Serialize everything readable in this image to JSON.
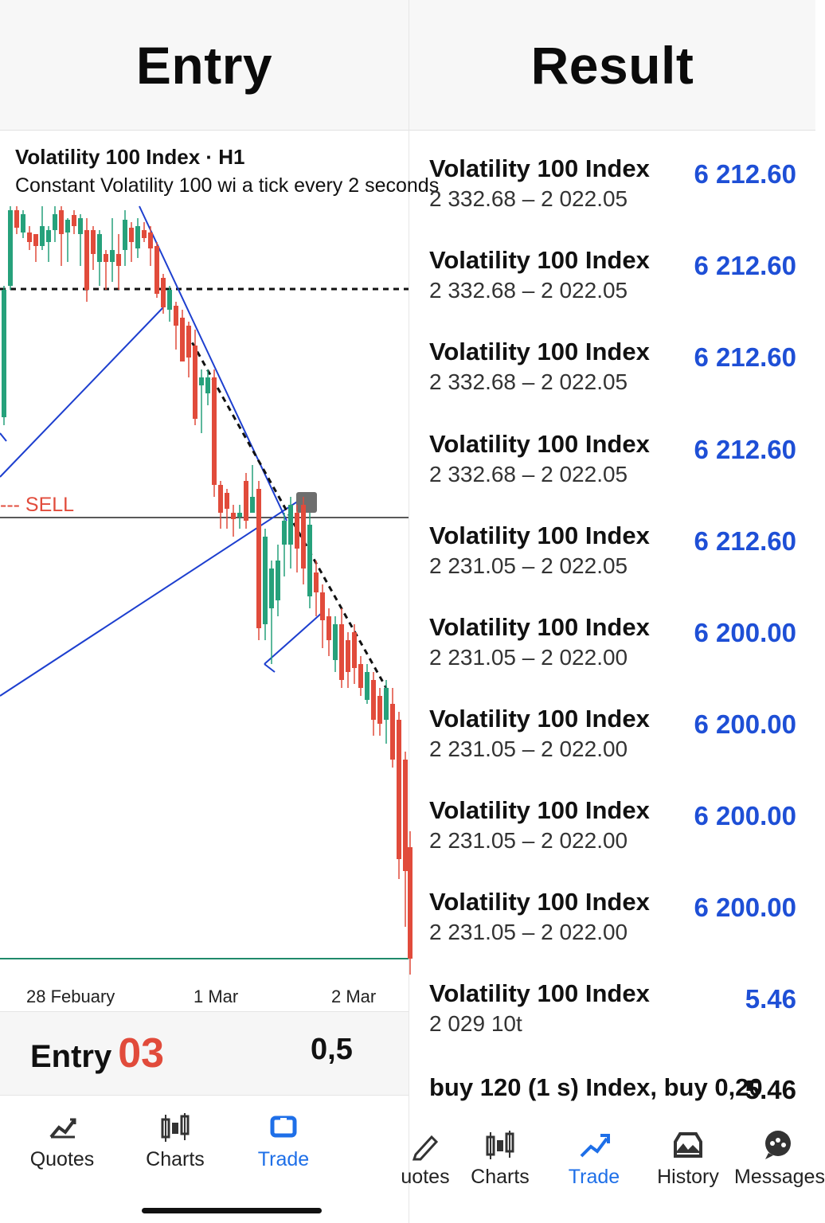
{
  "headers": {
    "left": "Entry",
    "right": "Result"
  },
  "chart": {
    "title": "Volatility 100 Index · H1",
    "subtitle": "Constant Volatility 100 wi a tick every 2 seconds",
    "sell_label": "--- SELL",
    "x_labels": [
      "28 Febuary",
      "1 Mar",
      "2 Mar"
    ],
    "colors": {
      "bull": "#26a17b",
      "bear": "#e14b3b",
      "trend": "#1d3fcf"
    }
  },
  "entry_bar": {
    "label": "Entry",
    "number": "03",
    "value": "0,5"
  },
  "left_nav": [
    {
      "label": "Quotes",
      "icon": "quotes-icon",
      "active": false
    },
    {
      "label": "Charts",
      "icon": "charts-icon",
      "active": false
    },
    {
      "label": "Trade",
      "icon": "trade-icon",
      "active": true
    }
  ],
  "results": [
    {
      "symbol": "Volatility 100 Index",
      "range": "2 332.68 – 2 022.05",
      "price": "6 212.60"
    },
    {
      "symbol": "Volatility 100 Index",
      "range": "2 332.68 – 2 022.05",
      "price": "6 212.60"
    },
    {
      "symbol": "Volatility 100 Index",
      "range": "2 332.68 – 2 022.05",
      "price": "6 212.60"
    },
    {
      "symbol": "Volatility 100 Index",
      "range": "2 332.68 – 2 022.05",
      "price": "6 212.60"
    },
    {
      "symbol": "Volatility 100 Index",
      "range": "2 231.05 – 2 022.05",
      "price": "6 212.60"
    },
    {
      "symbol": "Volatility 100 Index",
      "range": "2 231.05 – 2 022.00",
      "price": "6 200.00"
    },
    {
      "symbol": "Volatility 100 Index",
      "range": "2 231.05 – 2 022.00",
      "price": "6 200.00"
    },
    {
      "symbol": "Volatility 100 Index",
      "range": "2 231.05 – 2 022.00",
      "price": "6 200.00"
    },
    {
      "symbol": "Volatility 100 Index",
      "range": "2 231.05 – 2 022.00",
      "price": "6 200.00"
    },
    {
      "symbol": "Volatility 100 Index",
      "range": "2 029 10t",
      "price": "5.46"
    }
  ],
  "last_row": {
    "text": "buy 120 (1 s) Index, buy 0,20",
    "price": "5.46"
  },
  "right_nav": [
    {
      "label": "uotes",
      "icon": "quotes-icon",
      "active": false
    },
    {
      "label": "Charts",
      "icon": "charts-icon",
      "active": false
    },
    {
      "label": "Trade",
      "icon": "trade-icon",
      "active": true
    },
    {
      "label": "History",
      "icon": "history-icon",
      "active": false
    },
    {
      "label": "Messages",
      "icon": "messages-icon",
      "active": false
    }
  ]
}
